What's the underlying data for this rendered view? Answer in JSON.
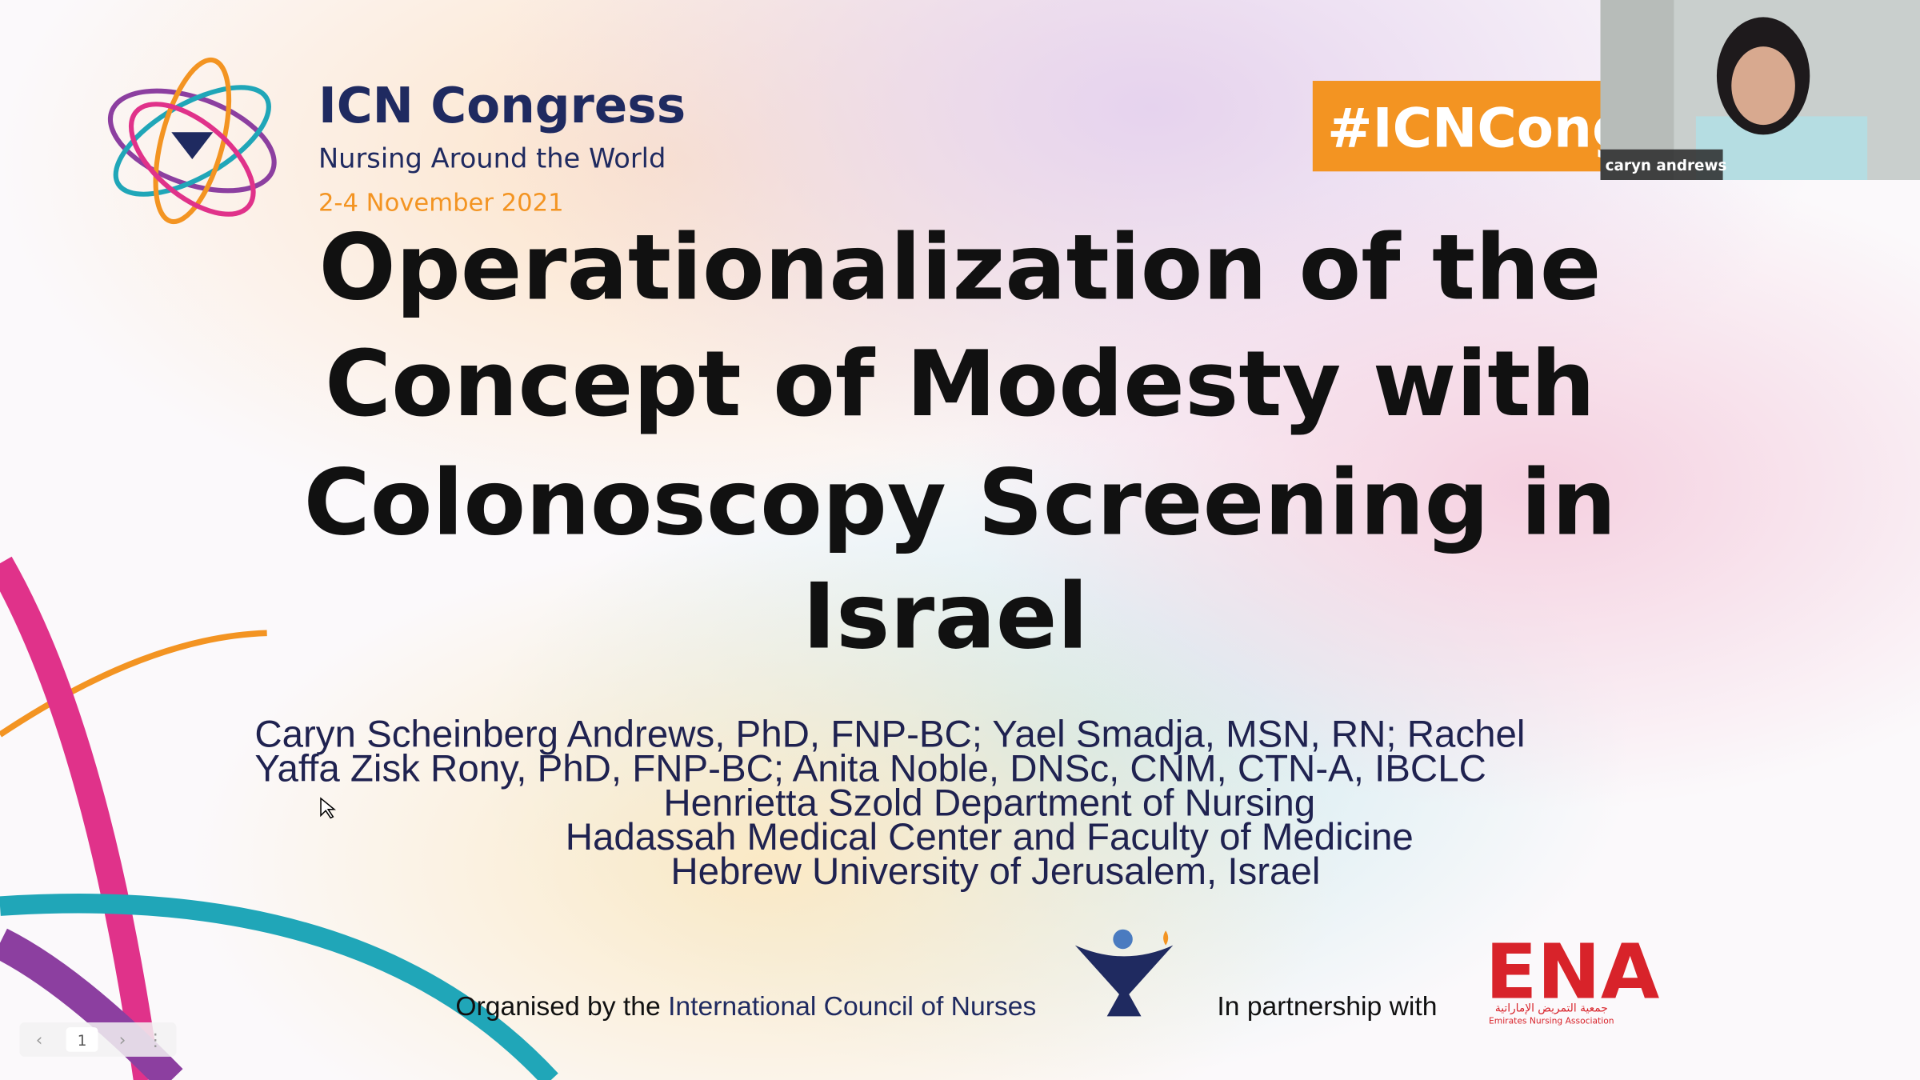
{
  "header": {
    "brand": "ICN Congress",
    "tagline": "Nursing Around the World",
    "dates": "2-4 November 2021",
    "hashtag": "#ICNCong"
  },
  "title": {
    "lines": [
      "Operationalization of the",
      "Concept of Modesty with",
      "Colonoscopy Screening in",
      "Israel"
    ]
  },
  "authors": {
    "lines": [
      "Caryn Scheinberg Andrews, PhD, FNP-BC; Yael Smadja, MSN, RN; Rachel",
      "Yaffa Zisk Rony, PhD, FNP-BC; Anita Noble, DNSc, CNM, CTN-A, IBCLC"
    ],
    "affiliation": [
      "Henrietta Szold Department of Nursing",
      "Hadassah Medical Center and Faculty of Medicine",
      "Hebrew University of Jerusalem, Israel"
    ]
  },
  "footer": {
    "organised_prefix": "Organised by the",
    "organiser": "International Council of Nurses",
    "partnership": "In partnership with",
    "partner_logo": "ENA",
    "partner_arabic": "جمعية التمريض الإماراتية",
    "partner_name": "Emirates Nursing Association"
  },
  "video": {
    "participant": "caryn andrews"
  },
  "pager": {
    "page": "1"
  }
}
